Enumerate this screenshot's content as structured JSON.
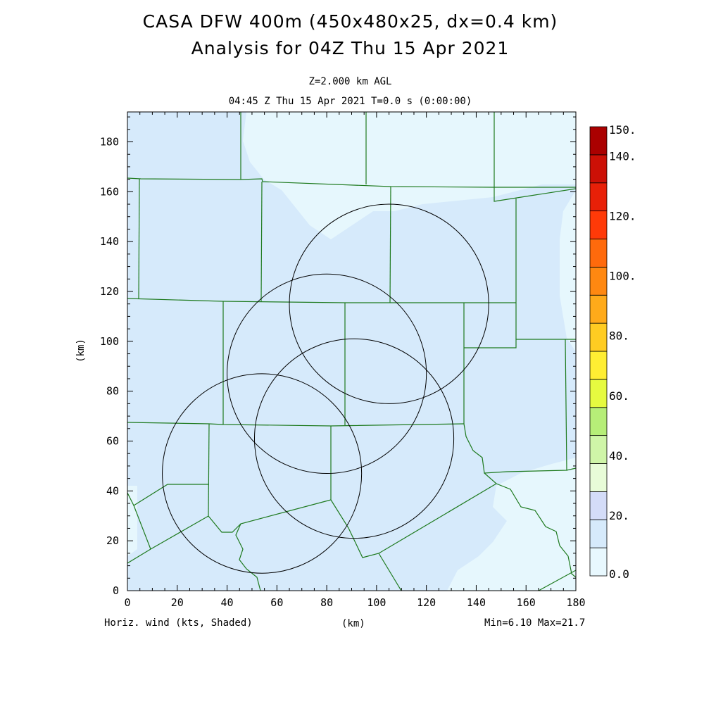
{
  "title_line1": "CASA DFW 400m (450x480x25, dx=0.4 km)",
  "title_line2": "Analysis for 04Z Thu 15 Apr 2021",
  "subtitle_level": "Z=2.000 km AGL",
  "subtitle_time": "04:45 Z Thu 15 Apr 2021    T=0.0 s (0:00:00)",
  "x_axis_label": "(km)",
  "y_axis_label": "(km)",
  "footer_left": "Horiz. wind (kts, Shaded)",
  "footer_right": "Min=6.10 Max=21.7",
  "map": {
    "x_ticks": [
      "0",
      "20",
      "40",
      "60",
      "80",
      "100",
      "120",
      "140",
      "160",
      "180"
    ],
    "y_ticks": [
      "0",
      "20",
      "40",
      "60",
      "80",
      "100",
      "120",
      "140",
      "160",
      "180"
    ],
    "x_range_km": [
      0,
      180
    ],
    "y_range_km": [
      0,
      192
    ],
    "radar_rings": [
      {
        "cx": 105,
        "cy": 115,
        "r": 40
      },
      {
        "cx": 80,
        "cy": 87,
        "r": 40
      },
      {
        "cx": 91,
        "cy": 61,
        "r": 40
      },
      {
        "cx": 54,
        "cy": 47,
        "r": 40
      }
    ],
    "colors": {
      "background_shade": "#d6eafb",
      "light_shade": "#e6f7fd",
      "county_lines": "#1e7a1e",
      "rings": "#000000"
    }
  },
  "colorbar": {
    "labels": [
      "150.",
      "140.",
      "120.",
      "100.",
      "80.",
      "60.",
      "40.",
      "20.",
      "0.0"
    ],
    "colors": [
      "#e8f8fe",
      "#d6eafb",
      "#d4dcf8",
      "#e8fcd8",
      "#cff5a8",
      "#b6ee78",
      "#e6fa40",
      "#ffee33",
      "#ffcc22",
      "#ffaa1a",
      "#ff8811",
      "#ff6a0c",
      "#ff3a08",
      "#e82008",
      "#cc1006",
      "#aa0000"
    ]
  }
}
